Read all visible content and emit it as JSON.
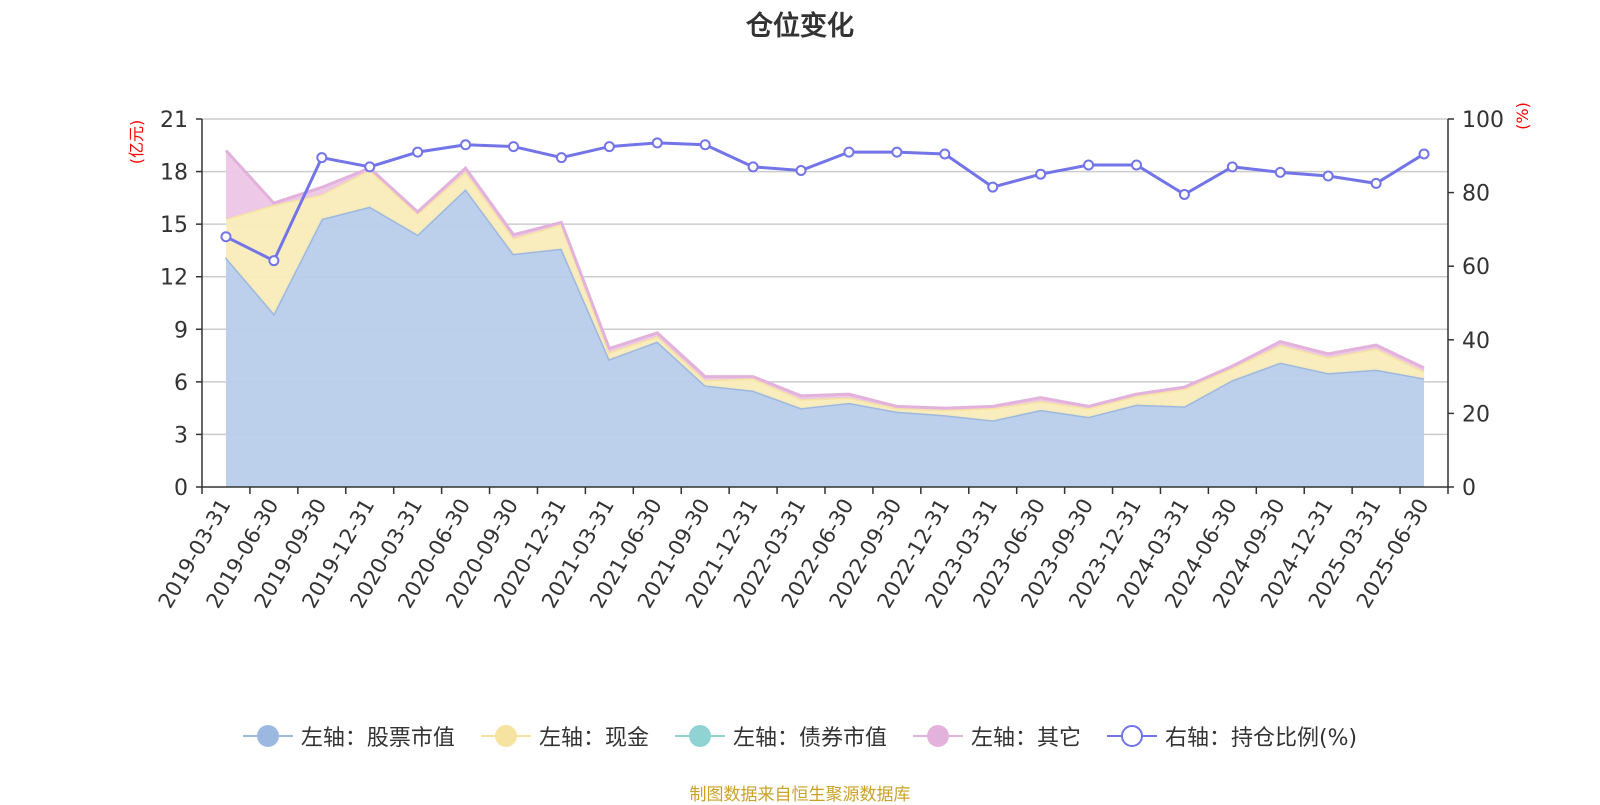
{
  "title": "仓位变化",
  "footer": "制图数据来自恒生聚源数据库",
  "chart_data": {
    "type": "area",
    "x": [
      "2019-03-31",
      "2019-06-30",
      "2019-09-30",
      "2019-12-31",
      "2020-03-31",
      "2020-06-30",
      "2020-09-30",
      "2020-12-31",
      "2021-03-31",
      "2021-06-30",
      "2021-09-30",
      "2021-12-31",
      "2022-03-31",
      "2022-06-30",
      "2022-09-30",
      "2022-12-31",
      "2023-03-31",
      "2023-06-30",
      "2023-09-30",
      "2023-12-31",
      "2024-03-31",
      "2024-06-30",
      "2024-09-30",
      "2024-12-31",
      "2025-03-31",
      "2025-06-30"
    ],
    "left_axis": {
      "label": "(亿元)",
      "ylim": [
        0,
        21
      ],
      "ticks": [
        0,
        3,
        6,
        9,
        12,
        15,
        18,
        21
      ]
    },
    "right_axis": {
      "label": "(%)",
      "ylim": [
        0,
        100
      ],
      "ticks": [
        0,
        20,
        40,
        60,
        80,
        100
      ]
    },
    "series": [
      {
        "name": "左轴：股票市值",
        "axis": "left",
        "kind": "stacked-area",
        "color": "#9db8e0",
        "fill": "#b8cdea",
        "values": [
          13.1,
          9.9,
          15.3,
          16.0,
          14.4,
          17.0,
          13.3,
          13.6,
          7.3,
          8.3,
          5.8,
          5.5,
          4.5,
          4.8,
          4.3,
          4.1,
          3.8,
          4.4,
          4.0,
          4.7,
          4.6,
          6.1,
          7.1,
          6.5,
          6.7,
          6.2
        ]
      },
      {
        "name": "左轴：现金",
        "axis": "left",
        "kind": "stacked-area",
        "color": "#f6e3a1",
        "fill": "#f9ecbb",
        "values": [
          2.2,
          6.2,
          1.4,
          2.1,
          1.2,
          1.0,
          0.9,
          1.4,
          0.4,
          0.3,
          0.3,
          0.7,
          0.5,
          0.3,
          0.2,
          0.3,
          0.7,
          0.5,
          0.5,
          0.5,
          1.0,
          0.7,
          1.0,
          0.9,
          1.2,
          0.4
        ]
      },
      {
        "name": "左轴：债券市值",
        "axis": "left",
        "kind": "stacked-area",
        "color": "#8fd3d3",
        "fill": "#a9dede",
        "values": [
          0,
          0,
          0,
          0,
          0,
          0,
          0,
          0,
          0,
          0,
          0,
          0,
          0,
          0,
          0,
          0,
          0,
          0,
          0,
          0,
          0,
          0,
          0,
          0,
          0,
          0
        ]
      },
      {
        "name": "左轴：其它",
        "axis": "left",
        "kind": "stacked-area",
        "color": "#e3b2dc",
        "fill": "#ecc6e6",
        "values": [
          3.9,
          0.1,
          0.4,
          0.1,
          0.1,
          0.2,
          0.2,
          0.1,
          0.2,
          0.2,
          0.2,
          0.1,
          0.2,
          0.2,
          0.1,
          0.1,
          0.1,
          0.2,
          0.1,
          0.1,
          0.1,
          0.1,
          0.2,
          0.2,
          0.2,
          0.2
        ]
      },
      {
        "name": "右轴：持仓比例(%)",
        "axis": "right",
        "kind": "line",
        "color": "#7274e8",
        "values": [
          68.0,
          61.5,
          89.5,
          87.0,
          91.0,
          93.0,
          92.5,
          89.5,
          92.5,
          93.5,
          93.0,
          87.0,
          86.0,
          91.0,
          91.0,
          90.5,
          81.5,
          85.0,
          87.5,
          87.5,
          79.5,
          87.0,
          85.5,
          84.5,
          82.5,
          90.5
        ]
      }
    ],
    "grid": true,
    "legend_position": "bottom"
  }
}
